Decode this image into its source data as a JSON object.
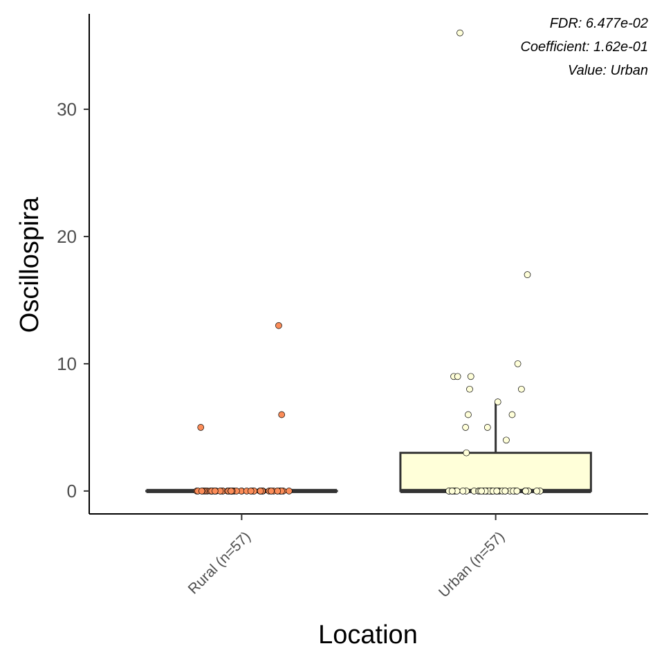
{
  "chart_data": {
    "type": "box",
    "xlabel": "Location",
    "ylabel": "Oscillospira",
    "ylim": [
      -1.8,
      37.5
    ],
    "yticks": [
      0,
      10,
      20,
      30
    ],
    "categories": [
      "Rural (n=57)",
      "Urban (n=57)"
    ],
    "colors": [
      "#FC8D59",
      "#FFFFD9"
    ],
    "annotations": [
      "FDR: 6.477e-02",
      "Coefficient: 1.62e-01",
      "Value: Urban"
    ],
    "boxes": [
      {
        "category": "Rural (n=57)",
        "min": 0,
        "q1": 0,
        "median": 0,
        "q3": 0,
        "max": 0
      },
      {
        "category": "Urban (n=57)",
        "min": 0,
        "q1": 0,
        "median": 0,
        "q3": 3,
        "max": 7
      }
    ],
    "points": [
      {
        "category": "Rural (n=57)",
        "values": [
          13,
          6,
          5,
          0,
          0,
          0,
          0,
          0,
          0,
          0,
          0,
          0,
          0,
          0,
          0,
          0,
          0,
          0,
          0,
          0,
          0,
          0,
          0,
          0,
          0,
          0,
          0,
          0,
          0,
          0,
          0,
          0,
          0,
          0,
          0,
          0,
          0,
          0,
          0,
          0,
          0,
          0,
          0,
          0,
          0,
          0,
          0,
          0,
          0,
          0,
          0,
          0,
          0,
          0,
          0,
          0,
          0
        ]
      },
      {
        "category": "Urban (n=57)",
        "values": [
          36,
          17,
          10,
          9,
          9,
          9,
          8,
          8,
          7,
          6,
          6,
          5,
          5,
          4,
          3,
          0,
          0,
          0,
          0,
          0,
          0,
          0,
          0,
          0,
          0,
          0,
          0,
          0,
          0,
          0,
          0,
          0,
          0,
          0,
          0,
          0,
          0,
          0,
          0,
          0,
          0,
          0,
          0,
          0,
          0,
          0,
          0,
          0,
          0,
          0,
          0,
          0,
          0,
          0,
          0,
          0,
          0
        ]
      }
    ]
  }
}
